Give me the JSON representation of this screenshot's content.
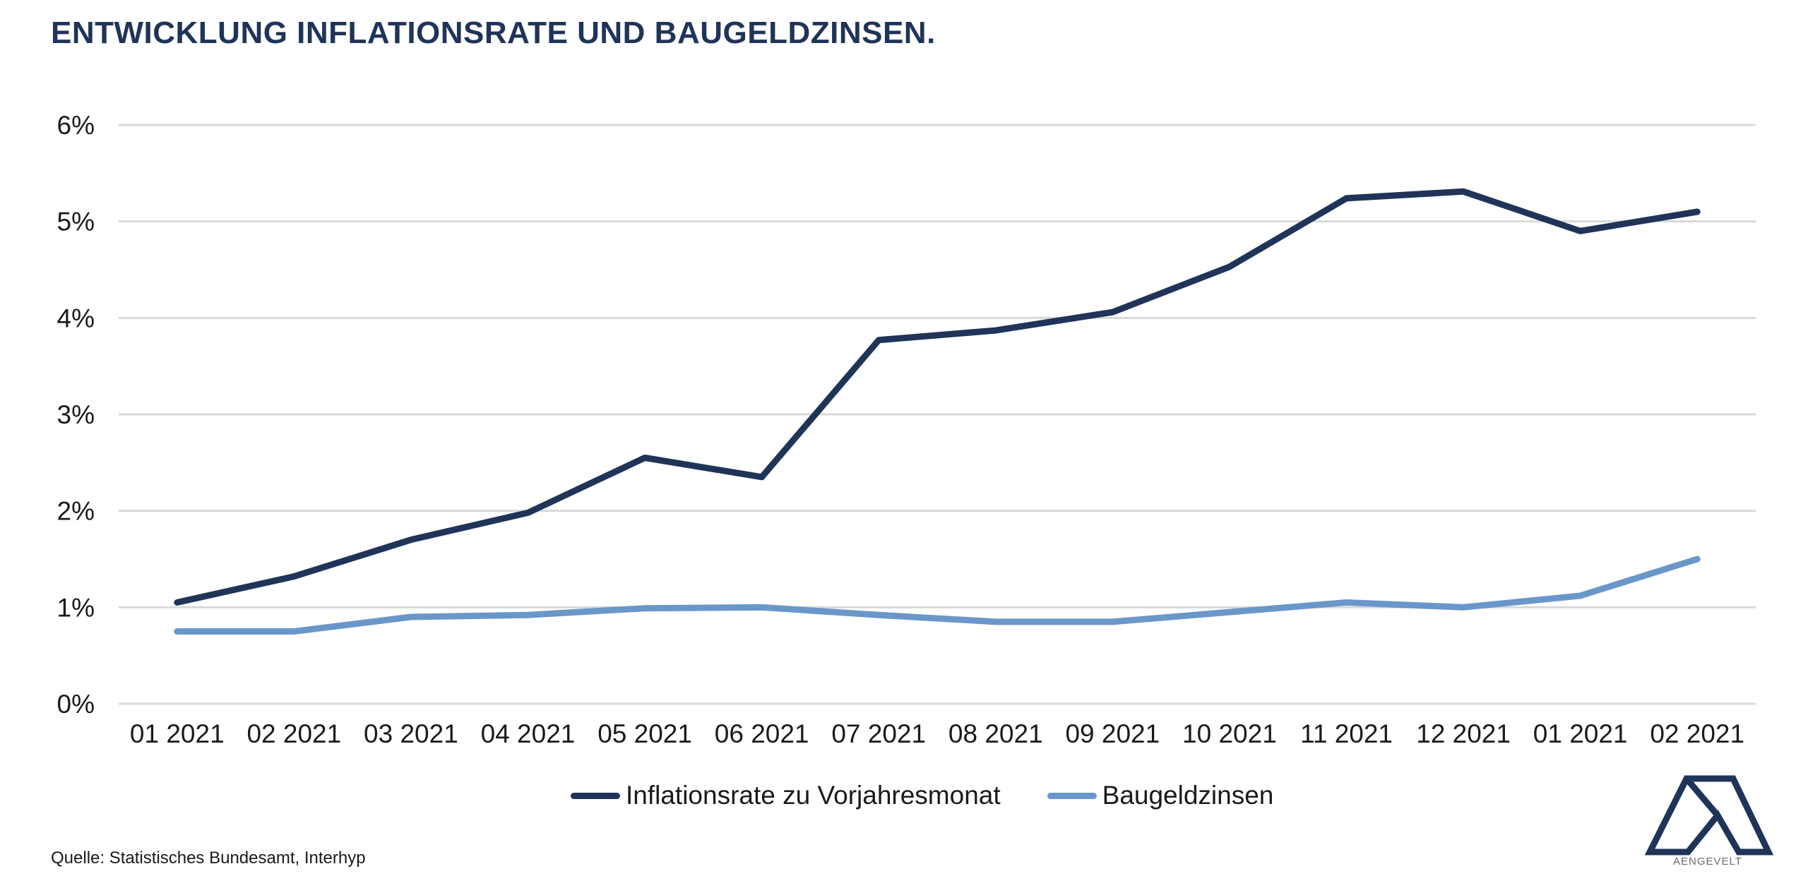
{
  "header": {
    "title": "ENTWICKLUNG INFLATIONSRATE UND BAUGELDZINSEN."
  },
  "chart_data": {
    "type": "line",
    "title": "ENTWICKLUNG INFLATIONSRATE UND BAUGELDZINSEN.",
    "xlabel": "",
    "ylabel": "",
    "categories": [
      "01 2021",
      "02 2021",
      "03 2021",
      "04 2021",
      "05 2021",
      "06 2021",
      "07 2021",
      "08 2021",
      "09 2021",
      "10 2021",
      "11 2021",
      "12 2021",
      "01 2021",
      "02 2021"
    ],
    "yticks": [
      0,
      1,
      2,
      3,
      4,
      5,
      6
    ],
    "ytick_labels": [
      "0%",
      "1%",
      "2%",
      "3%",
      "4%",
      "5%",
      "6%"
    ],
    "ylim": [
      0,
      6
    ],
    "grid": true,
    "legend_position": "bottom",
    "series": [
      {
        "name": "Inflationsrate zu Vorjahresmonat",
        "color": "#1f3458",
        "values": [
          1.05,
          1.32,
          1.7,
          1.98,
          2.55,
          2.35,
          3.77,
          3.87,
          4.06,
          4.53,
          5.24,
          5.31,
          4.9,
          5.1
        ]
      },
      {
        "name": "Baugeldzinsen",
        "color": "#6a97c9",
        "values": [
          0.75,
          0.75,
          0.9,
          0.92,
          0.99,
          1.0,
          0.92,
          0.85,
          0.85,
          0.95,
          1.05,
          1.0,
          1.12,
          1.5
        ]
      }
    ]
  },
  "legend": {
    "items": [
      {
        "label": "Inflationsrate zu Vorjahresmonat",
        "color": "#1f3458"
      },
      {
        "label": "Baugeldzinsen",
        "color": "#6a97c9"
      }
    ]
  },
  "footer": {
    "source": "Quelle: Statistisches Bundesamt, Interhyp"
  },
  "logo": {
    "name": "AENGEVELT",
    "icon": "aengevelt-logo-icon"
  },
  "colors": {
    "title": "#1f3458",
    "grid": "#d9d9d9",
    "logo": "#1f3458"
  }
}
